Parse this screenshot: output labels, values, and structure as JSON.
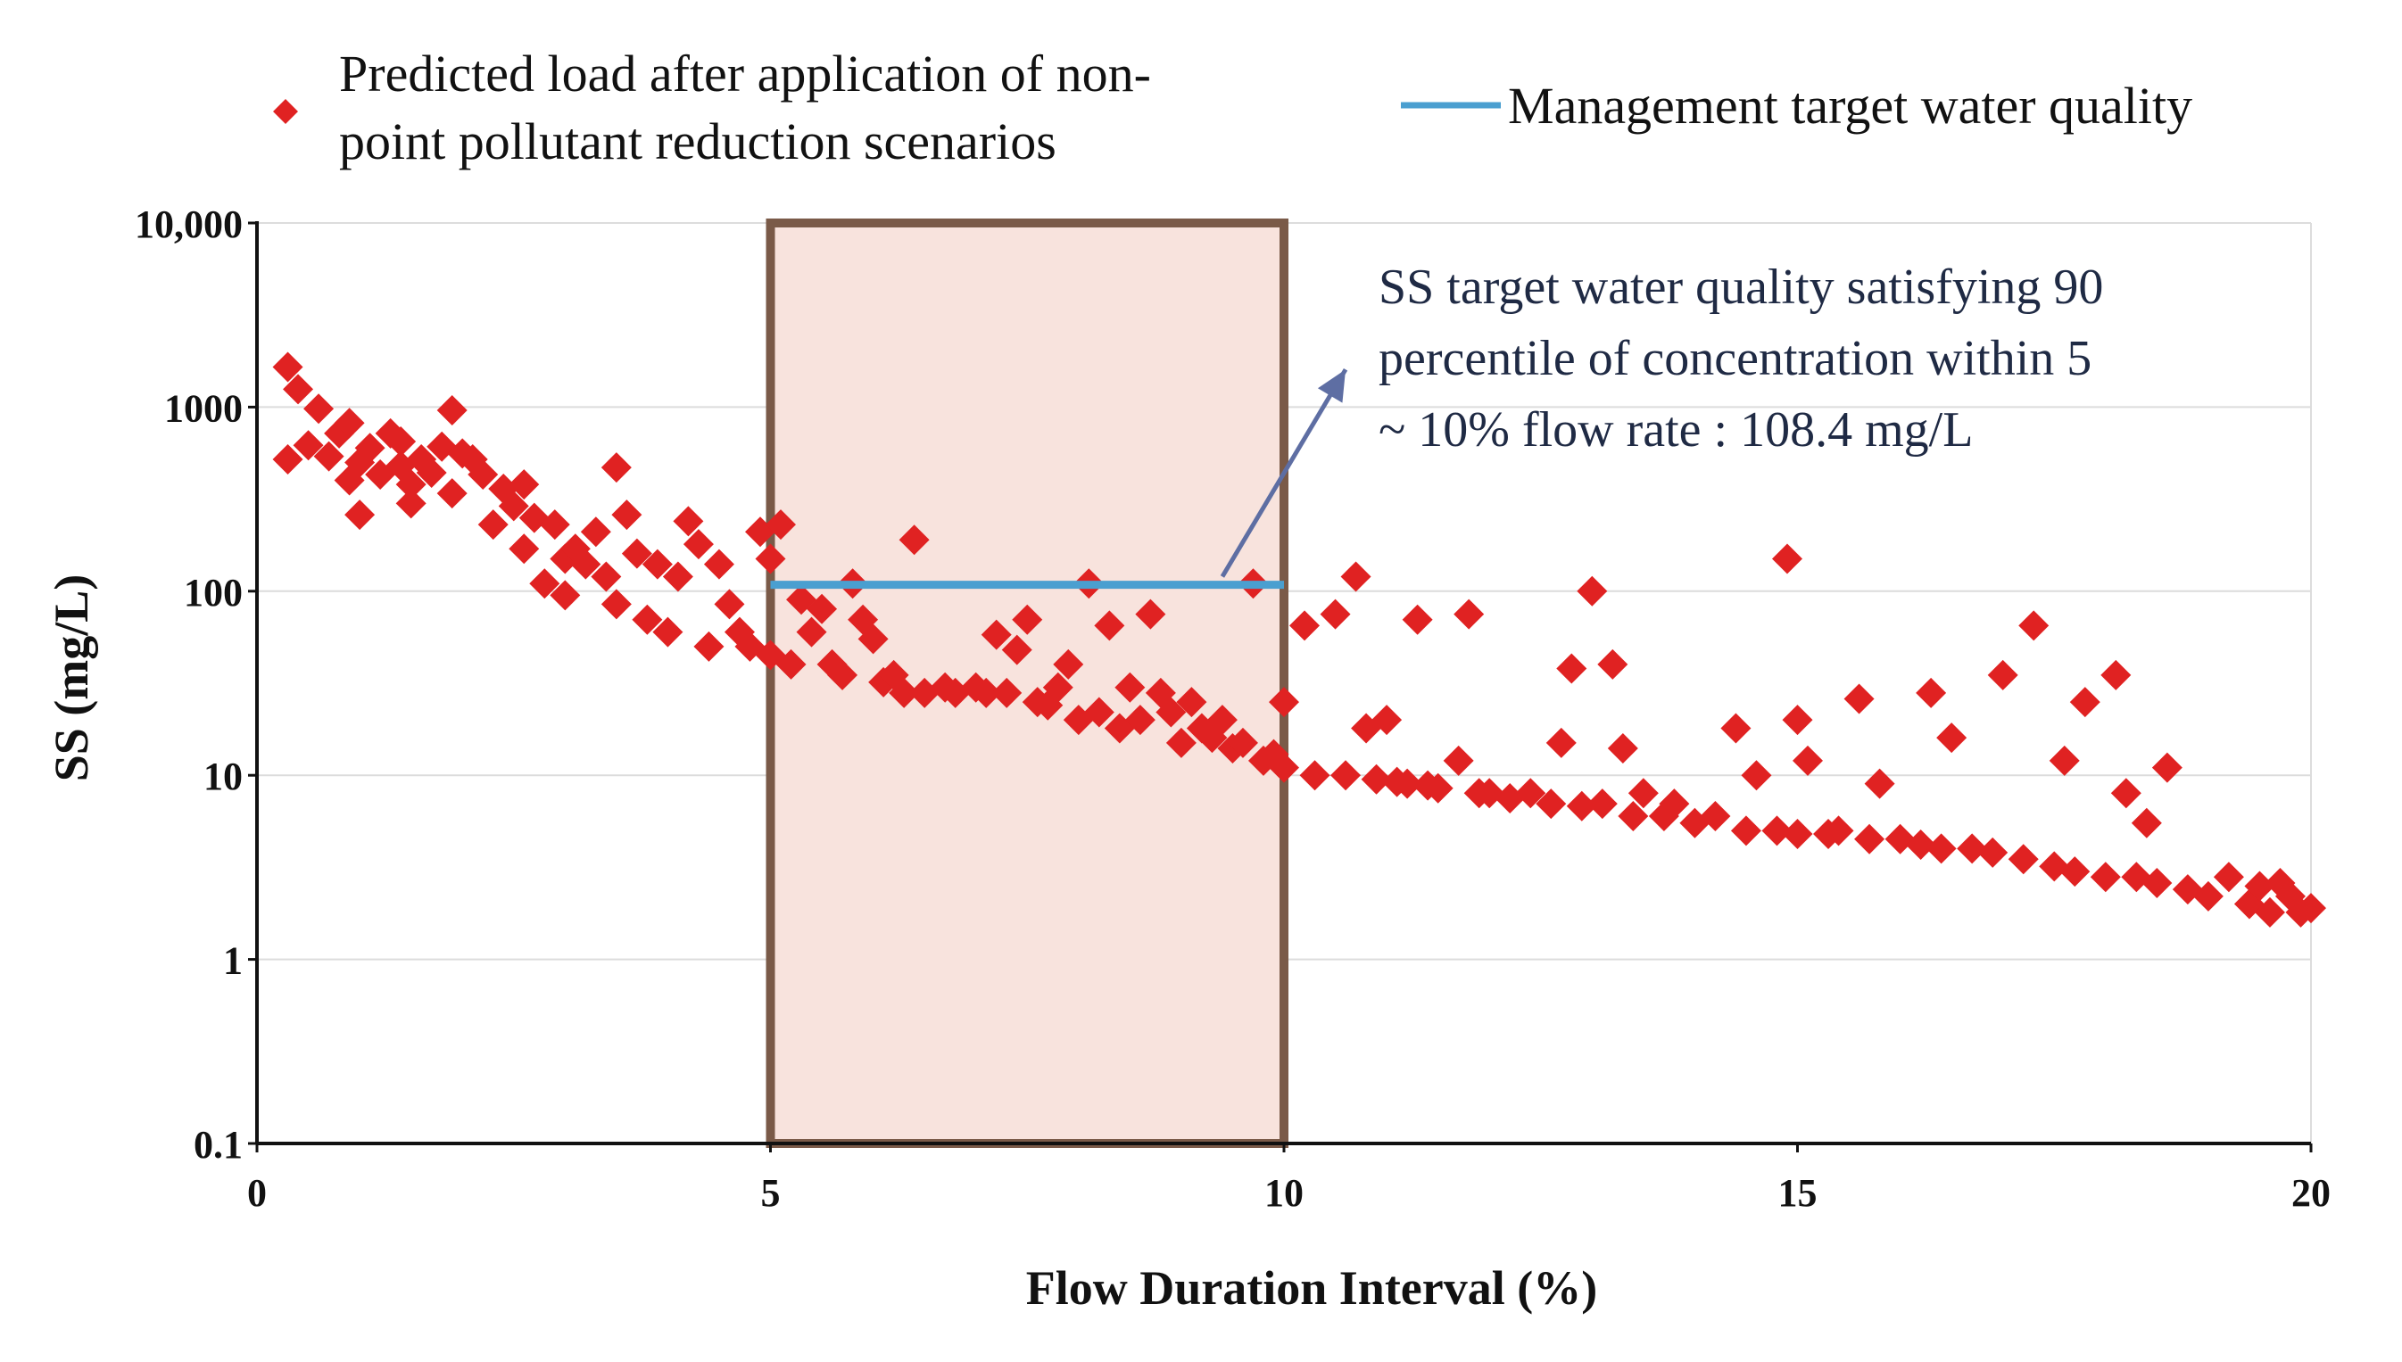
{
  "chart_data": {
    "type": "scatter",
    "title": "",
    "xlabel": "Flow Duration Interval (%)",
    "ylabel": "SS (mg/L)",
    "xlim": [
      0,
      20
    ],
    "ylim": [
      0.1,
      10000
    ],
    "yscale": "log",
    "grid": "y-major",
    "x_ticks": [
      0,
      5,
      10,
      15,
      20
    ],
    "x_tick_labels": [
      "0",
      "5",
      "10",
      "15",
      "20"
    ],
    "y_ticks": [
      0.1,
      1,
      10,
      100,
      1000,
      10000
    ],
    "y_tick_labels": [
      "0.1",
      "1",
      "10",
      "100",
      "1000",
      "10,000"
    ],
    "legend": {
      "position": "top",
      "entries": [
        {
          "label_line1": "Predicted load after application of non-",
          "label_line2": "point pollutant reduction scenarios",
          "marker": "diamond",
          "color": "#e02222"
        },
        {
          "label": "Management target water quality",
          "marker": "line",
          "color": "#4a9fd0"
        }
      ]
    },
    "highlight_region": {
      "x": [
        5,
        10
      ],
      "fill": "#f8e3dd",
      "stroke": "#7a5a48"
    },
    "target_line": {
      "name": "Management target water quality",
      "x": [
        5,
        10
      ],
      "y": 108.4,
      "color": "#4a9fd0"
    },
    "annotation": {
      "lines": [
        "SS target water quality satisfying 90",
        "percentile of concentration within 5",
        "~ 10% flow rate : 108.4  mg/L"
      ],
      "arrow_from": [
        9.4,
        120
      ],
      "arrow_to": [
        10.6,
        1600
      ],
      "arrow_color": "#5e6ea3"
    },
    "series": [
      {
        "name": "Predicted load after application of non-point pollutant reduction scenarios",
        "color": "#e02222",
        "marker": "diamond",
        "points": [
          [
            0.3,
            1650
          ],
          [
            0.3,
            520
          ],
          [
            0.4,
            1250
          ],
          [
            0.5,
            620
          ],
          [
            0.6,
            980
          ],
          [
            0.7,
            540
          ],
          [
            0.8,
            720
          ],
          [
            0.9,
            820
          ],
          [
            0.9,
            400
          ],
          [
            1.0,
            500
          ],
          [
            1.0,
            260
          ],
          [
            1.1,
            600
          ],
          [
            1.2,
            430
          ],
          [
            1.3,
            720
          ],
          [
            1.4,
            480
          ],
          [
            1.4,
            650
          ],
          [
            1.5,
            380
          ],
          [
            1.5,
            300
          ],
          [
            1.6,
            520
          ],
          [
            1.7,
            440
          ],
          [
            1.8,
            610
          ],
          [
            1.9,
            960
          ],
          [
            1.9,
            340
          ],
          [
            2.0,
            560
          ],
          [
            2.1,
            520
          ],
          [
            2.2,
            430
          ],
          [
            2.3,
            230
          ],
          [
            2.4,
            360
          ],
          [
            2.5,
            290
          ],
          [
            2.6,
            170
          ],
          [
            2.6,
            380
          ],
          [
            2.7,
            250
          ],
          [
            2.8,
            110
          ],
          [
            2.9,
            230
          ],
          [
            3.0,
            150
          ],
          [
            3.0,
            95
          ],
          [
            3.1,
            170
          ],
          [
            3.2,
            140
          ],
          [
            3.3,
            210
          ],
          [
            3.4,
            120
          ],
          [
            3.5,
            85
          ],
          [
            3.5,
            470
          ],
          [
            3.6,
            260
          ],
          [
            3.7,
            160
          ],
          [
            3.8,
            70
          ],
          [
            3.9,
            140
          ],
          [
            4.0,
            60
          ],
          [
            4.1,
            120
          ],
          [
            4.2,
            240
          ],
          [
            4.3,
            180
          ],
          [
            4.4,
            50
          ],
          [
            4.5,
            140
          ],
          [
            4.6,
            85
          ],
          [
            4.7,
            60
          ],
          [
            4.8,
            50
          ],
          [
            4.9,
            210
          ],
          [
            5.0,
            45
          ],
          [
            5.0,
            150
          ],
          [
            5.1,
            230
          ],
          [
            5.2,
            40
          ],
          [
            5.3,
            90
          ],
          [
            5.4,
            60
          ],
          [
            5.5,
            80
          ],
          [
            5.6,
            40
          ],
          [
            5.7,
            35
          ],
          [
            5.8,
            110
          ],
          [
            5.9,
            70
          ],
          [
            6.0,
            55
          ],
          [
            6.1,
            32
          ],
          [
            6.2,
            35
          ],
          [
            6.3,
            28
          ],
          [
            6.4,
            190
          ],
          [
            6.5,
            28
          ],
          [
            6.7,
            30
          ],
          [
            6.8,
            28
          ],
          [
            7.0,
            30
          ],
          [
            7.1,
            28
          ],
          [
            7.2,
            58
          ],
          [
            7.3,
            28
          ],
          [
            7.4,
            48
          ],
          [
            7.5,
            70
          ],
          [
            7.6,
            25
          ],
          [
            7.7,
            24
          ],
          [
            7.8,
            30
          ],
          [
            7.9,
            40
          ],
          [
            8.0,
            20
          ],
          [
            8.1,
            110
          ],
          [
            8.2,
            22
          ],
          [
            8.3,
            65
          ],
          [
            8.4,
            18
          ],
          [
            8.5,
            30
          ],
          [
            8.6,
            20
          ],
          [
            8.7,
            75
          ],
          [
            8.8,
            28
          ],
          [
            8.9,
            22
          ],
          [
            9.0,
            15
          ],
          [
            9.1,
            25
          ],
          [
            9.2,
            18
          ],
          [
            9.3,
            16
          ],
          [
            9.4,
            20
          ],
          [
            9.5,
            14
          ],
          [
            9.6,
            15
          ],
          [
            9.7,
            110
          ],
          [
            9.8,
            12
          ],
          [
            9.9,
            13
          ],
          [
            10.0,
            25
          ],
          [
            10.0,
            11
          ],
          [
            10.2,
            65
          ],
          [
            10.3,
            10
          ],
          [
            10.5,
            75
          ],
          [
            10.6,
            10
          ],
          [
            10.7,
            120
          ],
          [
            10.8,
            18
          ],
          [
            10.9,
            9.5
          ],
          [
            11.0,
            20
          ],
          [
            11.1,
            9.2
          ],
          [
            11.2,
            9
          ],
          [
            11.3,
            70
          ],
          [
            11.4,
            8.8
          ],
          [
            11.5,
            8.5
          ],
          [
            11.7,
            12
          ],
          [
            11.8,
            75
          ],
          [
            11.9,
            8
          ],
          [
            12.0,
            8
          ],
          [
            12.2,
            7.5
          ],
          [
            12.4,
            8
          ],
          [
            12.6,
            7
          ],
          [
            12.7,
            15
          ],
          [
            12.8,
            38
          ],
          [
            12.9,
            6.8
          ],
          [
            13.0,
            100
          ],
          [
            13.1,
            7
          ],
          [
            13.2,
            40
          ],
          [
            13.3,
            14
          ],
          [
            13.4,
            6
          ],
          [
            13.5,
            8
          ],
          [
            13.7,
            6
          ],
          [
            13.8,
            7
          ],
          [
            14.0,
            5.5
          ],
          [
            14.2,
            6
          ],
          [
            14.4,
            18
          ],
          [
            14.5,
            5
          ],
          [
            14.6,
            10
          ],
          [
            14.8,
            5
          ],
          [
            14.9,
            150
          ],
          [
            15.0,
            4.8
          ],
          [
            15.0,
            20
          ],
          [
            15.1,
            12
          ],
          [
            15.3,
            4.8
          ],
          [
            15.4,
            5
          ],
          [
            15.6,
            26
          ],
          [
            15.7,
            4.5
          ],
          [
            15.8,
            9
          ],
          [
            16.0,
            4.5
          ],
          [
            16.2,
            4.2
          ],
          [
            16.3,
            28
          ],
          [
            16.4,
            4
          ],
          [
            16.5,
            16
          ],
          [
            16.7,
            4
          ],
          [
            16.9,
            3.8
          ],
          [
            17.0,
            35
          ],
          [
            17.2,
            3.5
          ],
          [
            17.3,
            65
          ],
          [
            17.5,
            3.2
          ],
          [
            17.6,
            12
          ],
          [
            17.7,
            3
          ],
          [
            17.8,
            25
          ],
          [
            18.0,
            2.8
          ],
          [
            18.1,
            35
          ],
          [
            18.2,
            8
          ],
          [
            18.3,
            2.8
          ],
          [
            18.4,
            5.5
          ],
          [
            18.5,
            2.6
          ],
          [
            18.6,
            11
          ],
          [
            18.8,
            2.4
          ],
          [
            19.0,
            2.2
          ],
          [
            19.2,
            2.8
          ],
          [
            19.4,
            2
          ],
          [
            19.5,
            2.5
          ],
          [
            19.6,
            1.8
          ],
          [
            19.7,
            2.6
          ],
          [
            19.8,
            2.2
          ],
          [
            19.9,
            1.8
          ],
          [
            20.0,
            1.9
          ]
        ]
      }
    ]
  }
}
